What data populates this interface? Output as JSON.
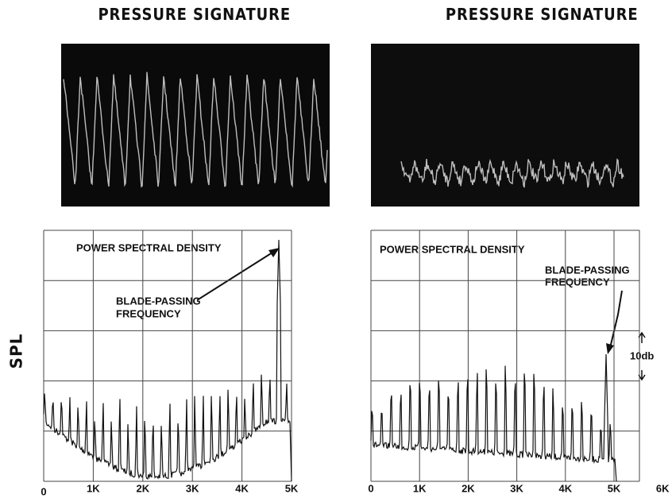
{
  "y_axis_label": "SPL",
  "left": {
    "signature_title": "PRESSURE SIGNATURE",
    "psd_title": "POWER SPECTRAL DENSITY",
    "annotation": [
      "BLADE-PASSING",
      "FREQUENCY"
    ],
    "xticks": [
      "0",
      "1K",
      "2K",
      "3K",
      "4K",
      "5K"
    ]
  },
  "right": {
    "signature_title": "PRESSURE SIGNATURE",
    "psd_title": "POWER SPECTRAL DENSITY",
    "annotation": [
      "BLADE-PASSING",
      "FREQUENCY"
    ],
    "scale_label": "10db",
    "xticks": [
      "0",
      "1K",
      "2K",
      "3K",
      "4K",
      "5K",
      "6K"
    ]
  }
}
